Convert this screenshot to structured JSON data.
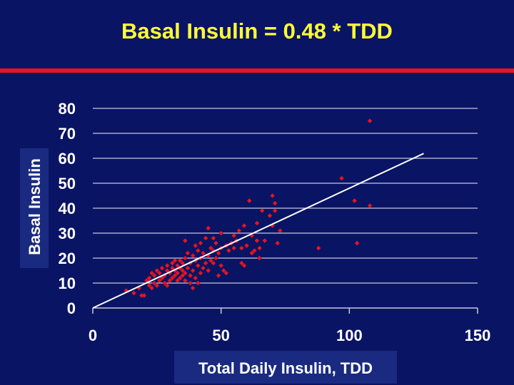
{
  "slide": {
    "title": "Basal Insulin = 0.48 * TDD",
    "colors": {
      "background": "#0a1464",
      "title": "#ffff33",
      "rule": "#e8141e",
      "points": "#e8141e",
      "trendline": "#ffffff",
      "gridlines": "#c8c8dc",
      "label_box": "#1a2a80"
    }
  },
  "chart_data": {
    "type": "scatter",
    "title": "",
    "xlabel": "Total Daily Insulin, TDD",
    "ylabel": "Basal Insulin",
    "xlim": [
      0,
      150
    ],
    "ylim": [
      0,
      80
    ],
    "xticks": [
      0,
      50,
      100,
      150
    ],
    "yticks": [
      0,
      10,
      20,
      30,
      40,
      50,
      60,
      70,
      80
    ],
    "xtick_labels": [
      "0",
      "50",
      "100",
      "150"
    ],
    "ytick_labels": [
      "0",
      "10",
      "20",
      "30",
      "40",
      "50",
      "60",
      "70",
      "80"
    ],
    "grid": "horizontal",
    "legend": "none",
    "trendline": {
      "slope": 0.48,
      "intercept": 0,
      "x": [
        0,
        129
      ]
    },
    "points": [
      [
        13,
        7
      ],
      [
        16,
        6
      ],
      [
        18,
        8
      ],
      [
        19,
        5
      ],
      [
        20,
        5
      ],
      [
        21,
        11
      ],
      [
        22,
        9
      ],
      [
        22,
        12
      ],
      [
        23,
        8
      ],
      [
        23,
        14
      ],
      [
        24,
        10
      ],
      [
        24,
        13
      ],
      [
        25,
        9
      ],
      [
        25,
        15
      ],
      [
        26,
        11
      ],
      [
        26,
        14
      ],
      [
        27,
        12
      ],
      [
        27,
        16
      ],
      [
        28,
        10
      ],
      [
        28,
        13
      ],
      [
        29,
        9
      ],
      [
        29,
        15
      ],
      [
        29,
        17
      ],
      [
        30,
        11
      ],
      [
        30,
        14
      ],
      [
        31,
        12
      ],
      [
        31,
        16
      ],
      [
        31,
        18
      ],
      [
        32,
        13
      ],
      [
        32,
        15
      ],
      [
        32,
        19
      ],
      [
        33,
        11
      ],
      [
        33,
        14
      ],
      [
        33,
        17
      ],
      [
        34,
        12
      ],
      [
        34,
        16
      ],
      [
        34,
        19
      ],
      [
        35,
        13
      ],
      [
        35,
        15
      ],
      [
        35,
        18
      ],
      [
        36,
        11
      ],
      [
        36,
        14
      ],
      [
        36,
        20
      ],
      [
        36,
        27
      ],
      [
        37,
        16
      ],
      [
        37,
        22
      ],
      [
        38,
        10
      ],
      [
        38,
        13
      ],
      [
        38,
        18
      ],
      [
        39,
        8
      ],
      [
        39,
        15
      ],
      [
        39,
        21
      ],
      [
        40,
        12
      ],
      [
        40,
        19
      ],
      [
        40,
        25
      ],
      [
        41,
        10
      ],
      [
        41,
        17
      ],
      [
        41,
        23
      ],
      [
        42,
        14
      ],
      [
        42,
        20
      ],
      [
        42,
        26
      ],
      [
        43,
        16
      ],
      [
        43,
        22
      ],
      [
        44,
        18
      ],
      [
        44,
        28
      ],
      [
        45,
        15
      ],
      [
        45,
        21
      ],
      [
        45,
        32
      ],
      [
        46,
        19
      ],
      [
        46,
        24
      ],
      [
        47,
        18
      ],
      [
        47,
        23
      ],
      [
        47,
        28
      ],
      [
        48,
        20
      ],
      [
        48,
        26
      ],
      [
        49,
        13
      ],
      [
        49,
        22
      ],
      [
        50,
        17
      ],
      [
        50,
        24
      ],
      [
        50,
        30
      ],
      [
        51,
        15
      ],
      [
        52,
        14
      ],
      [
        52,
        25
      ],
      [
        53,
        23
      ],
      [
        54,
        26
      ],
      [
        55,
        24
      ],
      [
        55,
        29
      ],
      [
        56,
        27
      ],
      [
        57,
        31
      ],
      [
        58,
        18
      ],
      [
        58,
        24
      ],
      [
        59,
        17
      ],
      [
        59,
        33
      ],
      [
        60,
        25
      ],
      [
        61,
        43
      ],
      [
        62,
        22
      ],
      [
        62,
        29
      ],
      [
        63,
        23
      ],
      [
        64,
        34
      ],
      [
        64,
        27
      ],
      [
        65,
        20
      ],
      [
        65,
        24
      ],
      [
        66,
        39
      ],
      [
        67,
        27
      ],
      [
        69,
        37
      ],
      [
        70,
        45
      ],
      [
        70,
        33
      ],
      [
        71,
        39
      ],
      [
        71,
        42
      ],
      [
        72,
        26
      ],
      [
        73,
        31
      ],
      [
        88,
        24
      ],
      [
        97,
        52
      ],
      [
        102,
        43
      ],
      [
        103,
        26
      ],
      [
        108,
        41
      ],
      [
        108,
        75
      ]
    ]
  }
}
